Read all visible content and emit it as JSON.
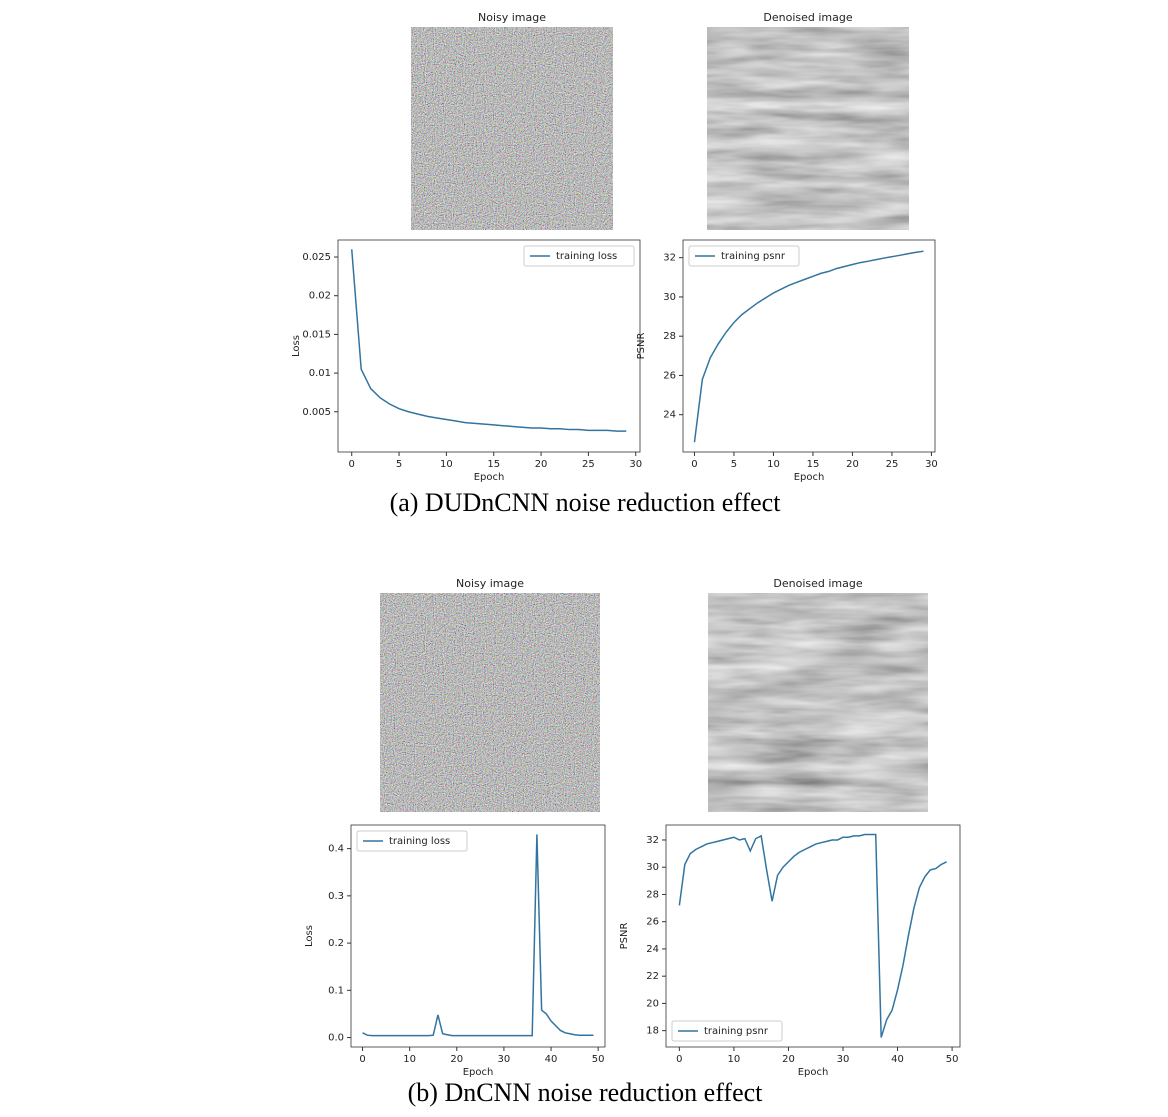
{
  "image_titles": [
    "Noisy image",
    "Denoised image",
    "Noisy image",
    "Denoised image"
  ],
  "captions": [
    "(a) DUDnCNN noise reduction effect",
    "(b) DnCNN noise reduction effect"
  ],
  "chart_data": [
    {
      "type": "line",
      "xlabel": "Epoch",
      "ylabel": "Loss",
      "legend": "upper right",
      "x": [
        0,
        1,
        2,
        3,
        4,
        5,
        6,
        7,
        8,
        9,
        10,
        11,
        12,
        13,
        14,
        15,
        16,
        17,
        18,
        19,
        20,
        21,
        22,
        23,
        24,
        25,
        26,
        27,
        28,
        29
      ],
      "series": [
        {
          "name": "training loss",
          "color": "#3274a1",
          "values": [
            0.026,
            0.0105,
            0.008,
            0.0068,
            0.006,
            0.0054,
            0.005,
            0.0047,
            0.0044,
            0.0042,
            0.004,
            0.0038,
            0.0036,
            0.0035,
            0.0034,
            0.0033,
            0.0032,
            0.0031,
            0.003,
            0.0029,
            0.0029,
            0.0028,
            0.0028,
            0.0027,
            0.0027,
            0.0026,
            0.0026,
            0.0026,
            0.0025,
            0.0025
          ]
        }
      ],
      "xlim": [
        -1.45,
        30.45
      ],
      "xticks": [
        0,
        5,
        10,
        15,
        20,
        25,
        30
      ],
      "ylim": [
        -0.0002,
        0.0272
      ],
      "yticks": [
        0.005,
        0.01,
        0.015,
        0.02,
        0.025
      ]
    },
    {
      "type": "line",
      "xlabel": "Epoch",
      "ylabel": "PSNR",
      "legend": "upper left",
      "x": [
        0,
        1,
        2,
        3,
        4,
        5,
        6,
        7,
        8,
        9,
        10,
        11,
        12,
        13,
        14,
        15,
        16,
        17,
        18,
        19,
        20,
        21,
        22,
        23,
        24,
        25,
        26,
        27,
        28,
        29
      ],
      "series": [
        {
          "name": "training psnr",
          "color": "#3274a1",
          "values": [
            22.6,
            25.8,
            26.9,
            27.6,
            28.2,
            28.7,
            29.1,
            29.4,
            29.7,
            29.95,
            30.2,
            30.4,
            30.6,
            30.75,
            30.9,
            31.05,
            31.2,
            31.3,
            31.45,
            31.55,
            31.65,
            31.75,
            31.82,
            31.9,
            31.98,
            32.05,
            32.12,
            32.2,
            32.27,
            32.33
          ]
        }
      ],
      "xlim": [
        -1.45,
        30.45
      ],
      "xticks": [
        0,
        5,
        10,
        15,
        20,
        25,
        30
      ],
      "ylim": [
        22.1,
        32.9
      ],
      "yticks": [
        24,
        26,
        28,
        30,
        32
      ]
    },
    {
      "type": "line",
      "xlabel": "Epoch",
      "ylabel": "Loss",
      "legend": "upper left",
      "x": [
        0,
        1,
        2,
        3,
        4,
        5,
        6,
        7,
        8,
        9,
        10,
        11,
        12,
        13,
        14,
        15,
        16,
        17,
        18,
        19,
        20,
        21,
        22,
        23,
        24,
        25,
        26,
        27,
        28,
        29,
        30,
        31,
        32,
        33,
        34,
        35,
        36,
        37,
        38,
        39,
        40,
        41,
        42,
        43,
        44,
        45,
        46,
        47,
        48,
        49
      ],
      "series": [
        {
          "name": "training loss",
          "color": "#3274a1",
          "values": [
            0.01,
            0.005,
            0.004,
            0.004,
            0.004,
            0.004,
            0.004,
            0.004,
            0.004,
            0.004,
            0.004,
            0.004,
            0.004,
            0.004,
            0.004,
            0.005,
            0.048,
            0.008,
            0.006,
            0.004,
            0.004,
            0.004,
            0.004,
            0.004,
            0.004,
            0.004,
            0.004,
            0.004,
            0.004,
            0.004,
            0.004,
            0.004,
            0.004,
            0.004,
            0.004,
            0.004,
            0.004,
            0.43,
            0.058,
            0.05,
            0.035,
            0.025,
            0.015,
            0.01,
            0.008,
            0.006,
            0.005,
            0.005,
            0.005,
            0.005
          ]
        }
      ],
      "xlim": [
        -2.45,
        51.45
      ],
      "xticks": [
        0,
        10,
        20,
        30,
        40,
        50
      ],
      "ylim": [
        -0.02,
        0.45
      ],
      "yticks": [
        {
          "value": 0,
          "label": "0.0"
        },
        0.1,
        0.2,
        0.3,
        0.4
      ]
    },
    {
      "type": "line",
      "xlabel": "Epoch",
      "ylabel": "PSNR",
      "legend": "lower left",
      "x": [
        0,
        1,
        2,
        3,
        4,
        5,
        6,
        7,
        8,
        9,
        10,
        11,
        12,
        13,
        14,
        15,
        16,
        17,
        18,
        19,
        20,
        21,
        22,
        23,
        24,
        25,
        26,
        27,
        28,
        29,
        30,
        31,
        32,
        33,
        34,
        35,
        36,
        37,
        38,
        39,
        40,
        41,
        42,
        43,
        44,
        45,
        46,
        47,
        48,
        49
      ],
      "series": [
        {
          "name": "training psnr",
          "color": "#3274a1",
          "values": [
            27.2,
            30.2,
            31.0,
            31.3,
            31.5,
            31.7,
            31.8,
            31.9,
            32.0,
            32.1,
            32.2,
            32.0,
            32.1,
            31.2,
            32.1,
            32.3,
            29.8,
            27.5,
            29.4,
            30.0,
            30.4,
            30.8,
            31.1,
            31.3,
            31.5,
            31.7,
            31.8,
            31.9,
            32.0,
            32.0,
            32.2,
            32.2,
            32.3,
            32.3,
            32.4,
            32.4,
            32.4,
            17.5,
            18.8,
            19.5,
            21.0,
            22.8,
            25.0,
            27.0,
            28.5,
            29.3,
            29.8,
            29.9,
            30.2,
            30.4
          ]
        }
      ],
      "xlim": [
        -2.45,
        51.45
      ],
      "xticks": [
        0,
        10,
        20,
        30,
        40,
        50
      ],
      "ylim": [
        16.8,
        33.1
      ],
      "yticks": [
        18,
        20,
        22,
        24,
        26,
        28,
        30,
        32
      ]
    }
  ]
}
